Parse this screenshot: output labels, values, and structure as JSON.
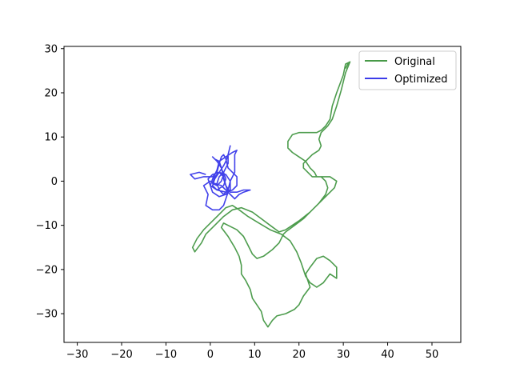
{
  "chart_data": {
    "type": "line",
    "title": "",
    "xlabel": "",
    "ylabel": "",
    "xlim": [
      -33,
      56.5
    ],
    "ylim": [
      -36.5,
      30.5
    ],
    "xticks": [
      -30,
      -20,
      -10,
      0,
      10,
      20,
      30,
      40,
      50
    ],
    "yticks": [
      -30,
      -20,
      -10,
      0,
      10,
      20,
      30
    ],
    "grid": false,
    "legend_position": "top-right",
    "series": [
      {
        "name": "Original",
        "color": "#2e8b2e",
        "points": [
          [
            31.5,
            27.0
          ],
          [
            30.5,
            26.5
          ],
          [
            30.0,
            24.0
          ],
          [
            28.5,
            20.0
          ],
          [
            27.5,
            17.0
          ],
          [
            27.0,
            14.0
          ],
          [
            26.0,
            12.5
          ],
          [
            25.0,
            11.5
          ],
          [
            24.0,
            11.0
          ],
          [
            22.0,
            11.0
          ],
          [
            20.0,
            11.0
          ],
          [
            18.5,
            10.5
          ],
          [
            17.5,
            9.0
          ],
          [
            17.5,
            7.5
          ],
          [
            18.5,
            6.5
          ],
          [
            20.0,
            5.5
          ],
          [
            21.5,
            4.5
          ],
          [
            22.5,
            3.0
          ],
          [
            23.5,
            2.0
          ],
          [
            24.0,
            1.0
          ],
          [
            25.0,
            1.0
          ],
          [
            27.0,
            1.0
          ],
          [
            28.5,
            0.0
          ],
          [
            28.0,
            -1.5
          ],
          [
            26.0,
            -3.5
          ],
          [
            23.5,
            -6.0
          ],
          [
            21.0,
            -8.5
          ],
          [
            19.0,
            -10.0
          ],
          [
            17.0,
            -11.5
          ],
          [
            16.5,
            -12.0
          ],
          [
            16.0,
            -13.0
          ],
          [
            15.5,
            -14.0
          ],
          [
            14.0,
            -15.5
          ],
          [
            12.0,
            -17.0
          ],
          [
            10.5,
            -17.5
          ],
          [
            9.5,
            -16.5
          ],
          [
            8.5,
            -14.5
          ],
          [
            7.5,
            -12.5
          ],
          [
            6.0,
            -11.0
          ],
          [
            4.0,
            -10.0
          ],
          [
            3.0,
            -9.5
          ],
          [
            2.5,
            -10.5
          ],
          [
            4.0,
            -12.5
          ],
          [
            5.5,
            -15.0
          ],
          [
            6.5,
            -17.0
          ],
          [
            7.0,
            -19.0
          ],
          [
            7.0,
            -21.0
          ],
          [
            8.0,
            -22.5
          ],
          [
            9.0,
            -24.5
          ],
          [
            9.5,
            -26.5
          ],
          [
            10.5,
            -28.0
          ],
          [
            11.5,
            -29.5
          ],
          [
            12.0,
            -31.5
          ],
          [
            13.0,
            -33.0
          ],
          [
            14.0,
            -31.5
          ],
          [
            15.0,
            -30.5
          ],
          [
            17.0,
            -30.0
          ],
          [
            19.0,
            -29.0
          ],
          [
            20.0,
            -28.0
          ],
          [
            21.0,
            -26.0
          ],
          [
            22.5,
            -24.0
          ],
          [
            22.0,
            -22.5
          ],
          [
            21.5,
            -21.0
          ],
          [
            22.5,
            -19.5
          ],
          [
            24.0,
            -17.5
          ],
          [
            25.5,
            -17.0
          ],
          [
            27.0,
            -18.0
          ],
          [
            28.5,
            -19.5
          ],
          [
            28.5,
            -22.0
          ],
          [
            27.0,
            -21.0
          ],
          [
            25.5,
            -23.0
          ],
          [
            24.0,
            -24.0
          ],
          [
            22.5,
            -23.0
          ],
          [
            21.5,
            -21.5
          ],
          [
            20.5,
            -18.5
          ],
          [
            19.5,
            -16.0
          ],
          [
            18.0,
            -13.5
          ],
          [
            16.0,
            -12.0
          ],
          [
            13.5,
            -11.0
          ],
          [
            11.0,
            -9.5
          ],
          [
            8.5,
            -8.0
          ],
          [
            6.5,
            -6.5
          ],
          [
            5.0,
            -5.5
          ],
          [
            3.5,
            -6.0
          ],
          [
            2.0,
            -7.5
          ],
          [
            0.0,
            -9.5
          ],
          [
            -1.5,
            -11.0
          ],
          [
            -3.0,
            -13.0
          ],
          [
            -4.0,
            -15.0
          ],
          [
            -3.5,
            -16.0
          ],
          [
            -2.0,
            -14.0
          ],
          [
            -1.0,
            -12.0
          ],
          [
            1.0,
            -10.0
          ],
          [
            3.0,
            -8.0
          ],
          [
            5.0,
            -6.5
          ],
          [
            7.0,
            -6.0
          ],
          [
            9.5,
            -7.0
          ],
          [
            11.5,
            -8.5
          ],
          [
            13.5,
            -10.0
          ],
          [
            15.5,
            -11.5
          ],
          [
            17.0,
            -11.0
          ],
          [
            20.0,
            -9.0
          ],
          [
            22.5,
            -7.0
          ],
          [
            24.5,
            -5.0
          ],
          [
            26.0,
            -3.0
          ],
          [
            26.5,
            -1.5
          ],
          [
            26.0,
            0.0
          ],
          [
            25.0,
            1.0
          ],
          [
            23.0,
            1.0
          ],
          [
            22.0,
            2.0
          ],
          [
            21.0,
            3.0
          ],
          [
            21.0,
            4.0
          ],
          [
            22.0,
            5.0
          ],
          [
            23.0,
            6.0
          ],
          [
            24.5,
            7.0
          ],
          [
            25.0,
            8.0
          ],
          [
            24.5,
            9.5
          ],
          [
            25.0,
            11.0
          ],
          [
            26.5,
            12.5
          ],
          [
            27.5,
            14.0
          ],
          [
            28.5,
            17.0
          ],
          [
            29.5,
            20.5
          ],
          [
            30.5,
            24.5
          ],
          [
            31.5,
            27.0
          ],
          [
            31.0,
            26.5
          ],
          [
            30.5,
            25.5
          ]
        ]
      },
      {
        "name": "Optimized",
        "color": "#2020e6",
        "points": [
          [
            -1.0,
            1.5
          ],
          [
            -2.5,
            2.0
          ],
          [
            -4.5,
            1.5
          ],
          [
            -3.5,
            0.5
          ],
          [
            -1.5,
            1.0
          ],
          [
            0.5,
            1.0
          ],
          [
            1.5,
            2.0
          ],
          [
            2.0,
            4.0
          ],
          [
            2.5,
            5.5
          ],
          [
            3.0,
            6.0
          ],
          [
            3.5,
            5.0
          ],
          [
            4.0,
            3.0
          ],
          [
            5.0,
            2.0
          ],
          [
            6.0,
            1.0
          ],
          [
            6.0,
            -1.0
          ],
          [
            5.0,
            -2.0
          ],
          [
            3.5,
            -2.5
          ],
          [
            1.5,
            -2.0
          ],
          [
            0.0,
            -1.0
          ],
          [
            -0.5,
            0.5
          ],
          [
            0.5,
            1.5
          ],
          [
            2.0,
            2.0
          ],
          [
            3.5,
            1.5
          ],
          [
            4.5,
            0.0
          ],
          [
            4.5,
            -2.0
          ],
          [
            3.5,
            -3.0
          ],
          [
            2.0,
            -3.5
          ],
          [
            0.5,
            -2.5
          ],
          [
            0.0,
            -1.0
          ],
          [
            0.5,
            0.5
          ],
          [
            1.5,
            2.5
          ],
          [
            2.0,
            4.5
          ],
          [
            2.5,
            3.0
          ],
          [
            3.0,
            1.0
          ],
          [
            3.5,
            -1.0
          ],
          [
            4.5,
            -2.5
          ],
          [
            6.0,
            -2.5
          ],
          [
            7.5,
            -2.0
          ],
          [
            9.0,
            -2.0
          ],
          [
            7.5,
            -2.5
          ],
          [
            6.5,
            -3.0
          ],
          [
            5.5,
            -4.0
          ],
          [
            4.5,
            -3.0
          ],
          [
            3.5,
            -2.0
          ],
          [
            2.5,
            -1.0
          ],
          [
            1.0,
            -0.5
          ],
          [
            0.0,
            0.0
          ],
          [
            -1.5,
            -1.0
          ],
          [
            -0.5,
            -3.0
          ],
          [
            -1.0,
            -5.5
          ],
          [
            0.5,
            -6.5
          ],
          [
            2.0,
            -6.5
          ],
          [
            3.0,
            -5.5
          ],
          [
            3.5,
            -4.0
          ],
          [
            4.0,
            -2.5
          ],
          [
            3.5,
            -1.0
          ],
          [
            3.0,
            0.5
          ],
          [
            3.0,
            2.0
          ],
          [
            4.0,
            4.0
          ],
          [
            4.0,
            6.0
          ],
          [
            4.5,
            8.0
          ],
          [
            4.0,
            6.0
          ],
          [
            3.5,
            4.5
          ],
          [
            3.0,
            3.5
          ],
          [
            2.0,
            2.0
          ],
          [
            1.0,
            0.5
          ],
          [
            0.5,
            -1.0
          ],
          [
            1.5,
            -2.0
          ],
          [
            3.0,
            -1.0
          ],
          [
            3.5,
            0.5
          ],
          [
            3.0,
            2.0
          ],
          [
            2.0,
            1.0
          ],
          [
            1.5,
            -0.5
          ],
          [
            2.0,
            -2.0
          ],
          [
            3.0,
            -3.0
          ],
          [
            4.0,
            -2.0
          ],
          [
            4.5,
            0.0
          ],
          [
            5.5,
            2.0
          ],
          [
            5.5,
            4.0
          ],
          [
            5.5,
            6.0
          ],
          [
            6.0,
            7.0
          ],
          [
            5.0,
            6.5
          ],
          [
            3.5,
            5.5
          ],
          [
            2.0,
            4.5
          ],
          [
            1.0,
            5.0
          ],
          [
            0.5,
            5.5
          ],
          [
            1.5,
            4.5
          ],
          [
            2.5,
            3.0
          ],
          [
            3.0,
            1.5
          ],
          [
            2.5,
            0.0
          ],
          [
            1.5,
            -1.0
          ],
          [
            0.5,
            -0.5
          ],
          [
            1.0,
            1.0
          ],
          [
            2.0,
            2.0
          ],
          [
            3.0,
            1.0
          ]
        ]
      }
    ]
  }
}
